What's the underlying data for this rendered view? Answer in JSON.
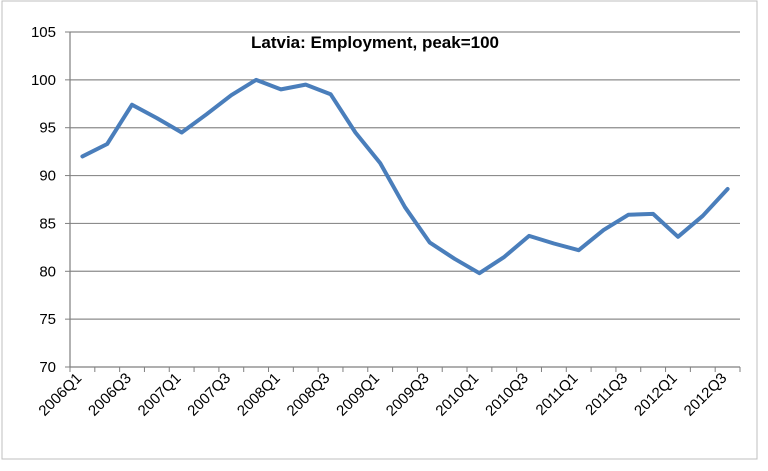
{
  "chart_data": {
    "type": "line",
    "title": "Latvia: Employment, peak=100",
    "xlabel": "",
    "ylabel": "",
    "ylim": [
      70,
      105
    ],
    "yticks": [
      70,
      75,
      80,
      85,
      90,
      95,
      100,
      105
    ],
    "grid": "horizontal",
    "legend": "none",
    "x": [
      "2006Q1",
      "2006Q2",
      "2006Q3",
      "2006Q4",
      "2007Q1",
      "2007Q2",
      "2007Q3",
      "2007Q4",
      "2008Q1",
      "2008Q2",
      "2008Q3",
      "2008Q4",
      "2009Q1",
      "2009Q2",
      "2009Q3",
      "2009Q4",
      "2010Q1",
      "2010Q2",
      "2010Q3",
      "2010Q4",
      "2011Q1",
      "2011Q2",
      "2011Q3",
      "2011Q4",
      "2012Q1",
      "2012Q2",
      "2012Q3"
    ],
    "xtick_labels": [
      "2006Q1",
      "2006Q3",
      "2007Q1",
      "2007Q3",
      "2008Q1",
      "2008Q3",
      "2009Q1",
      "2009Q3",
      "2010Q1",
      "2010Q3",
      "2011Q1",
      "2011Q3",
      "2012Q1",
      "2012Q3"
    ],
    "series": [
      {
        "values": [
          92.0,
          93.3,
          97.4,
          96.0,
          94.5,
          96.4,
          98.4,
          100.0,
          99.0,
          99.5,
          98.5,
          94.5,
          91.3,
          86.7,
          83.0,
          81.3,
          79.8,
          81.5,
          83.7,
          82.9,
          82.2,
          84.3,
          85.9,
          86.0,
          83.6,
          85.8,
          88.6
        ],
        "color": "#4a7ebb"
      }
    ]
  },
  "colors": {
    "line": "#4a7ebb",
    "gridline": "#8c8c8c",
    "axis": "#7f7f7f",
    "frame": "#bfbfbf"
  }
}
